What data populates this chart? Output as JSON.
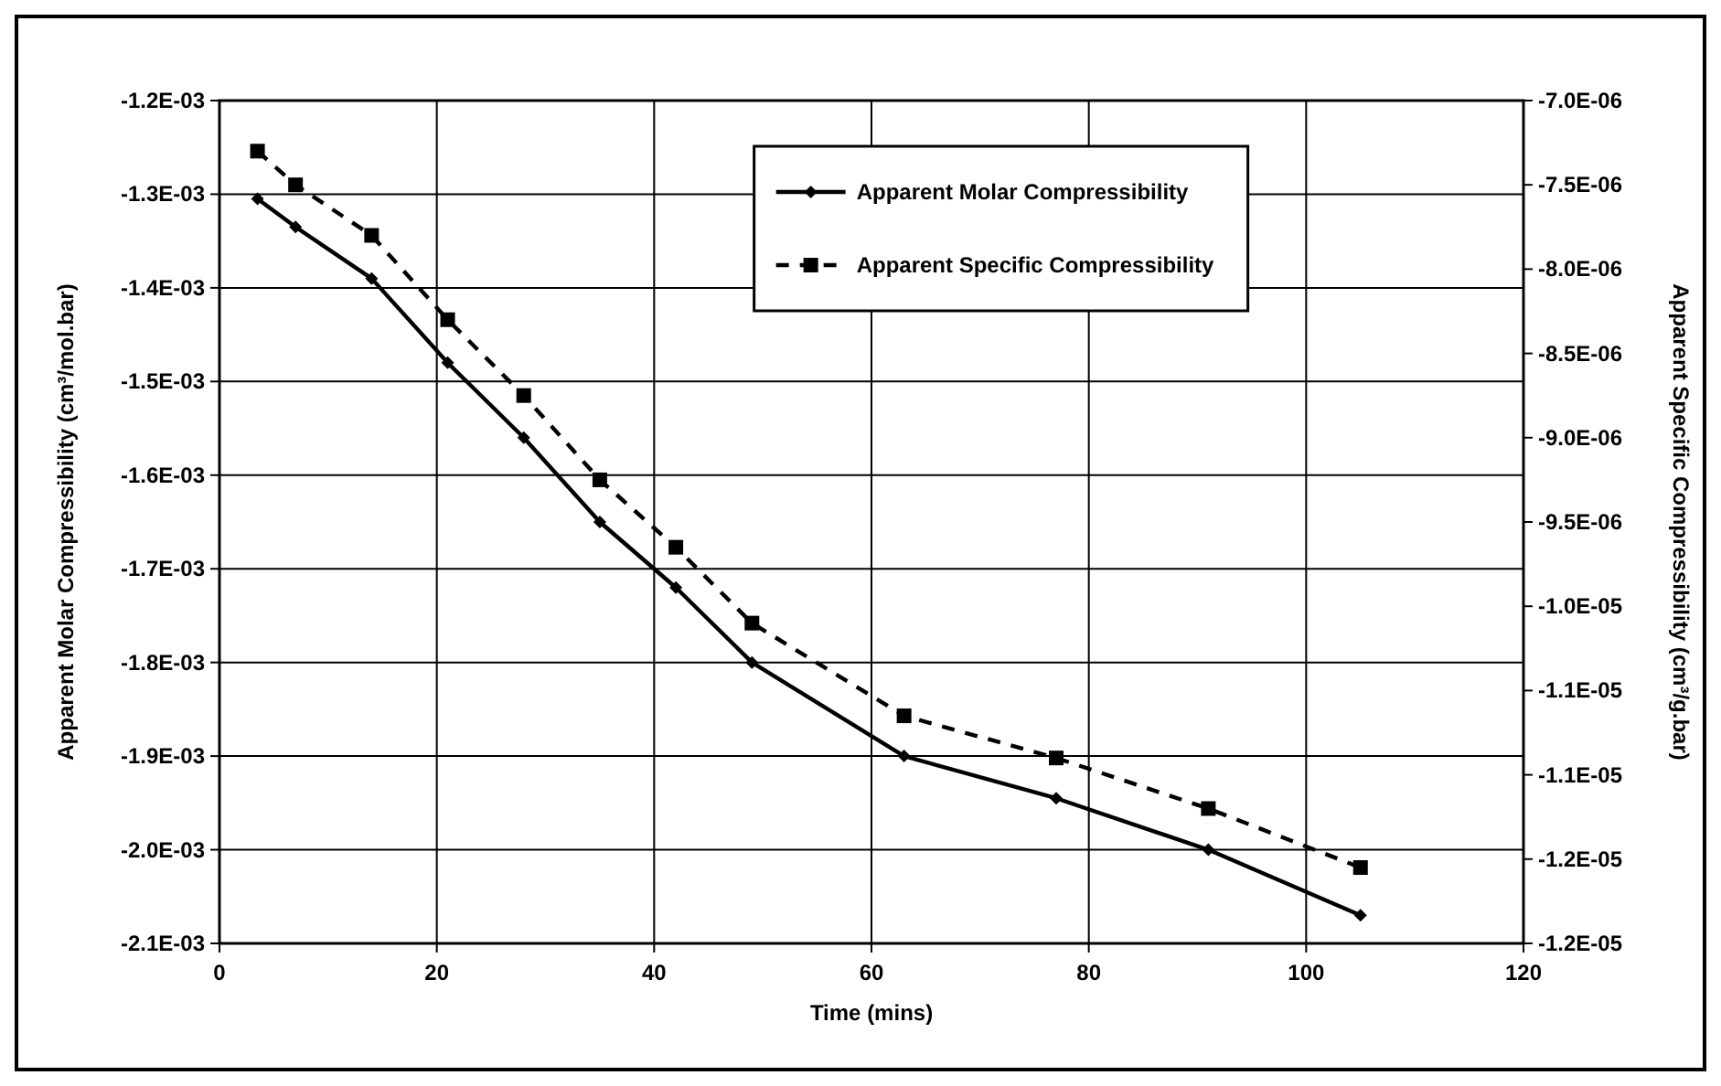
{
  "chart_data": {
    "type": "line",
    "xlabel": "Time (mins)",
    "ylabel": "Apparent Molar Compressibility (cm³/mol.bar)",
    "y2label": "Apparent Specific Compressibility (cm³/g.bar)",
    "series": [
      {
        "name": "Apparent Molar Compressibility",
        "color": "#000000",
        "marker": "diamond",
        "line_style": "solid",
        "x": [
          3.5,
          7,
          14,
          21,
          28,
          35,
          42,
          49,
          63,
          77,
          91,
          105
        ],
        "values": [
          -0.001305,
          -0.001335,
          -0.00139,
          -0.00148,
          -0.00156,
          -0.00165,
          -0.00172,
          -0.0018,
          -0.0019,
          -0.001945,
          -0.002,
          -0.00207
        ]
      },
      {
        "name": "Apparent Specific Compressibility",
        "color": "#000000",
        "marker": "square",
        "line_style": "dashed",
        "axis": "y2",
        "x": [
          3.5,
          7,
          14,
          21,
          28,
          35,
          42,
          49,
          63,
          77,
          91,
          105
        ],
        "values": [
          -7.3e-06,
          -7.5e-06,
          -7.8e-06,
          -8.3e-06,
          -8.75e-06,
          -9.25e-06,
          -9.65e-06,
          -1.01e-05,
          -1.065e-05,
          -1.09e-05,
          -1.12e-05,
          -1.155e-05
        ]
      }
    ],
    "xlim": [
      0,
      120
    ],
    "xticks": [
      0,
      20,
      40,
      60,
      80,
      100,
      120
    ],
    "ylim": [
      -0.0021,
      -0.0012
    ],
    "yticks": [
      {
        "value": -0.0012,
        "label": "-1.2E-03"
      },
      {
        "value": -0.0013,
        "label": "-1.3E-03"
      },
      {
        "value": -0.0014,
        "label": "-1.4E-03"
      },
      {
        "value": -0.0015,
        "label": "-1.5E-03"
      },
      {
        "value": -0.0016,
        "label": "-1.6E-03"
      },
      {
        "value": -0.0017,
        "label": "-1.7E-03"
      },
      {
        "value": -0.0018,
        "label": "-1.8E-03"
      },
      {
        "value": -0.0019,
        "label": "-1.9E-03"
      },
      {
        "value": -0.002,
        "label": "-2.0E-03"
      },
      {
        "value": -0.0021,
        "label": "-2.1E-03"
      }
    ],
    "y2lim": [
      -1.2e-05,
      -7e-06
    ],
    "y2ticks": [
      {
        "value": -7e-06,
        "label": "-7.0E-06"
      },
      {
        "value": -7.5e-06,
        "label": "-7.5E-06"
      },
      {
        "value": -8e-06,
        "label": "-8.0E-06"
      },
      {
        "value": -8.5e-06,
        "label": "-8.5E-06"
      },
      {
        "value": -9e-06,
        "label": "-9.0E-06"
      },
      {
        "value": -9.5e-06,
        "label": "-9.5E-06"
      },
      {
        "value": -1e-05,
        "label": "-1.0E-05"
      },
      {
        "value": -1.05e-05,
        "label": "-1.1E-05"
      },
      {
        "value": -1.1e-05,
        "label": "-1.1E-05"
      },
      {
        "value": -1.15e-05,
        "label": "-1.2E-05"
      },
      {
        "value": -1.2e-05,
        "label": "-1.2E-05"
      }
    ],
    "grid": true,
    "legend": "top right"
  }
}
